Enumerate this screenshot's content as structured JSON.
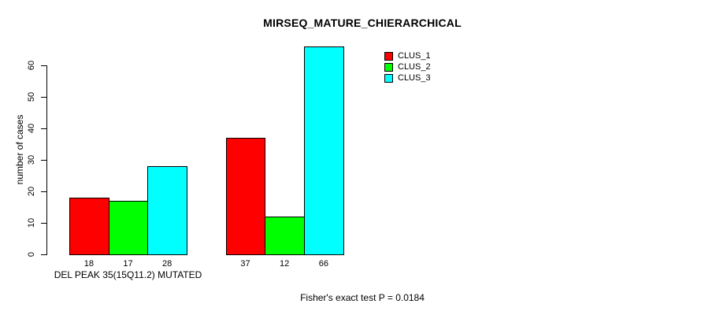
{
  "chart_data": {
    "type": "bar",
    "title": "MIRSEQ_MATURE_CHIERARCHICAL",
    "xlabel": "",
    "ylabel": "number of cases",
    "ylim": [
      0,
      60
    ],
    "ytick_step": 10,
    "ytick_labels": [
      "0",
      "10",
      "20",
      "30",
      "40",
      "50",
      "60"
    ],
    "grid": false,
    "legend_position": "top-right",
    "categories": [
      "DEL PEAK 35(15Q11.2) MUTATED",
      ""
    ],
    "series": [
      {
        "name": "CLUS_1",
        "color": "#ff0000",
        "values": [
          18,
          37
        ]
      },
      {
        "name": "CLUS_2",
        "color": "#00ff00",
        "values": [
          17,
          12
        ]
      },
      {
        "name": "CLUS_3",
        "color": "#00ffff",
        "values": [
          28,
          66
        ]
      }
    ],
    "bar_value_labels": [
      [
        18,
        17,
        28
      ],
      [
        37,
        12,
        66
      ]
    ],
    "annotation": "Fisher's exact test P = 0.0184"
  },
  "colors": {
    "background": "#ffffff",
    "axis": "#000000",
    "bar_border": "#000000",
    "text": "#000000"
  }
}
